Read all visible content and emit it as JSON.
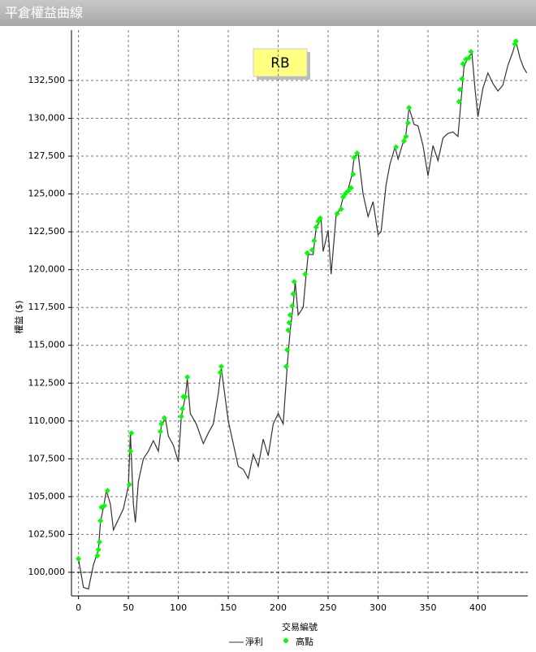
{
  "window": {
    "title": "平倉權益曲線"
  },
  "chart_data": {
    "type": "line",
    "annotation": "RB",
    "xlabel": "交易編號",
    "ylabel": "權益 ($)",
    "xlim": [
      -7,
      450
    ],
    "ylim": [
      98440,
      135830
    ],
    "xticks": [
      0,
      50,
      100,
      150,
      200,
      250,
      300,
      350,
      400
    ],
    "yticks": [
      {
        "value": 100000,
        "label": "100,000"
      },
      {
        "value": 102500,
        "label": "102,500"
      },
      {
        "value": 105000,
        "label": "105,000"
      },
      {
        "value": 107500,
        "label": "107,500"
      },
      {
        "value": 110000,
        "label": "110,000"
      },
      {
        "value": 112500,
        "label": "112,500"
      },
      {
        "value": 115000,
        "label": "115,000"
      },
      {
        "value": 117500,
        "label": "117,500"
      },
      {
        "value": 120000,
        "label": "120,000"
      },
      {
        "value": 122500,
        "label": "122,500"
      },
      {
        "value": 125000,
        "label": "125,000"
      },
      {
        "value": 127500,
        "label": "127,500"
      },
      {
        "value": 130000,
        "label": "130,000"
      },
      {
        "value": 132500,
        "label": "132,500"
      }
    ],
    "grid": true,
    "reference_line": 100000,
    "series": [
      {
        "name": "淨利",
        "color": "#333333",
        "x": [
          0,
          5,
          10,
          15,
          20,
          22,
          25,
          28,
          32,
          35,
          40,
          45,
          50,
          52,
          55,
          57,
          60,
          65,
          70,
          75,
          80,
          83,
          87,
          90,
          95,
          100,
          103,
          107,
          109,
          112,
          118,
          125,
          130,
          135,
          140,
          143,
          146,
          150,
          155,
          160,
          165,
          170,
          175,
          180,
          185,
          190,
          195,
          200,
          205,
          209,
          212,
          215,
          217,
          220,
          225,
          228,
          230,
          235,
          238,
          243,
          245,
          250,
          253,
          258,
          262,
          266,
          270,
          274,
          276,
          280,
          285,
          290,
          295,
          300,
          303,
          308,
          312,
          317,
          320,
          325,
          328,
          331,
          336,
          340,
          345,
          350,
          355,
          360,
          365,
          370,
          375,
          380,
          383,
          386,
          390,
          394,
          397,
          400,
          405,
          410,
          415,
          420,
          425,
          430,
          435,
          438,
          442,
          446,
          449
        ],
        "values": [
          100900,
          99000,
          98900,
          100500,
          101500,
          103300,
          104300,
          105400,
          104500,
          102800,
          103500,
          104200,
          105700,
          109200,
          104500,
          103300,
          106000,
          107500,
          108000,
          108700,
          108000,
          109700,
          110200,
          109000,
          108400,
          107300,
          110300,
          111600,
          112800,
          110500,
          109800,
          108500,
          109200,
          109800,
          111800,
          113500,
          112000,
          110000,
          108500,
          107000,
          106800,
          106200,
          107800,
          107000,
          108800,
          107700,
          109800,
          110500,
          109800,
          113600,
          116000,
          117600,
          119200,
          117000,
          117500,
          119700,
          121000,
          121000,
          122800,
          123300,
          121200,
          122600,
          119700,
          123600,
          124000,
          125000,
          125300,
          126300,
          127400,
          127700,
          125000,
          123500,
          124500,
          122300,
          122500,
          125600,
          127000,
          128100,
          127300,
          128400,
          129000,
          130700,
          129600,
          129500,
          128200,
          126200,
          128200,
          127200,
          128700,
          129000,
          129100,
          128800,
          131100,
          133400,
          134000,
          134300,
          132000,
          130100,
          132000,
          133000,
          132300,
          131800,
          132200,
          133500,
          134400,
          135100,
          134000,
          133300,
          133000
        ]
      },
      {
        "name": "高點",
        "color": "#00ff00",
        "x": [
          0,
          19,
          20,
          21,
          22,
          23,
          26,
          29,
          51,
          52,
          53,
          82,
          83,
          86,
          103,
          104,
          105,
          107,
          109,
          142,
          143,
          208,
          209,
          210,
          211,
          212,
          214,
          215,
          216,
          227,
          229,
          234,
          236,
          238,
          240,
          242,
          259,
          263,
          265,
          267,
          270,
          273,
          275,
          276,
          279,
          318,
          326,
          328,
          330,
          331,
          381,
          382,
          384,
          385,
          388,
          391,
          393,
          437,
          438
        ],
        "values": [
          100900,
          101100,
          101500,
          102000,
          103400,
          104300,
          104400,
          105400,
          105800,
          108000,
          109200,
          109300,
          109800,
          110200,
          110300,
          110800,
          111600,
          111600,
          112900,
          113200,
          113600,
          113600,
          114700,
          116000,
          116500,
          117000,
          117600,
          118400,
          119200,
          119700,
          121100,
          121300,
          121900,
          122800,
          123200,
          123400,
          123700,
          124000,
          124800,
          125000,
          125200,
          125400,
          126300,
          127400,
          127700,
          128100,
          128500,
          128800,
          129700,
          130700,
          131100,
          131900,
          132600,
          133600,
          133900,
          134000,
          134400,
          134900,
          135100
        ]
      }
    ]
  }
}
